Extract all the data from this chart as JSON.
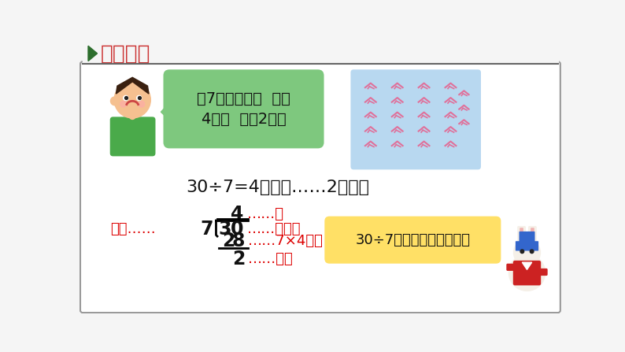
{
  "bg_color": "#f5f5f5",
  "card_bg": "#ffffff",
  "title_text": "新知探究",
  "title_color": "#cc3333",
  "title_arrow_color": "#2d6e2d",
  "bubble_bg": "#7ec87e",
  "bubble_text_line1": "每7只穿一串，  能穿",
  "bubble_text_line2": "4串，  还剩2只。",
  "crane_bg": "#b8d8f0",
  "equation_text": "30÷7=4（串）……2（只）",
  "equation_color": "#111111",
  "division_color": "#dd0000",
  "division_black": "#111111",
  "yellow_box_bg": "#ffe066",
  "yellow_box_text": "30÷7可以写成竖式计算。",
  "yellow_box_text_color": "#111111",
  "label_shang": "商",
  "label_beichushu": "被除数",
  "label_chushu": "除数",
  "label_ji": "7×4的积",
  "label_yushu": "余数",
  "dots": "……"
}
